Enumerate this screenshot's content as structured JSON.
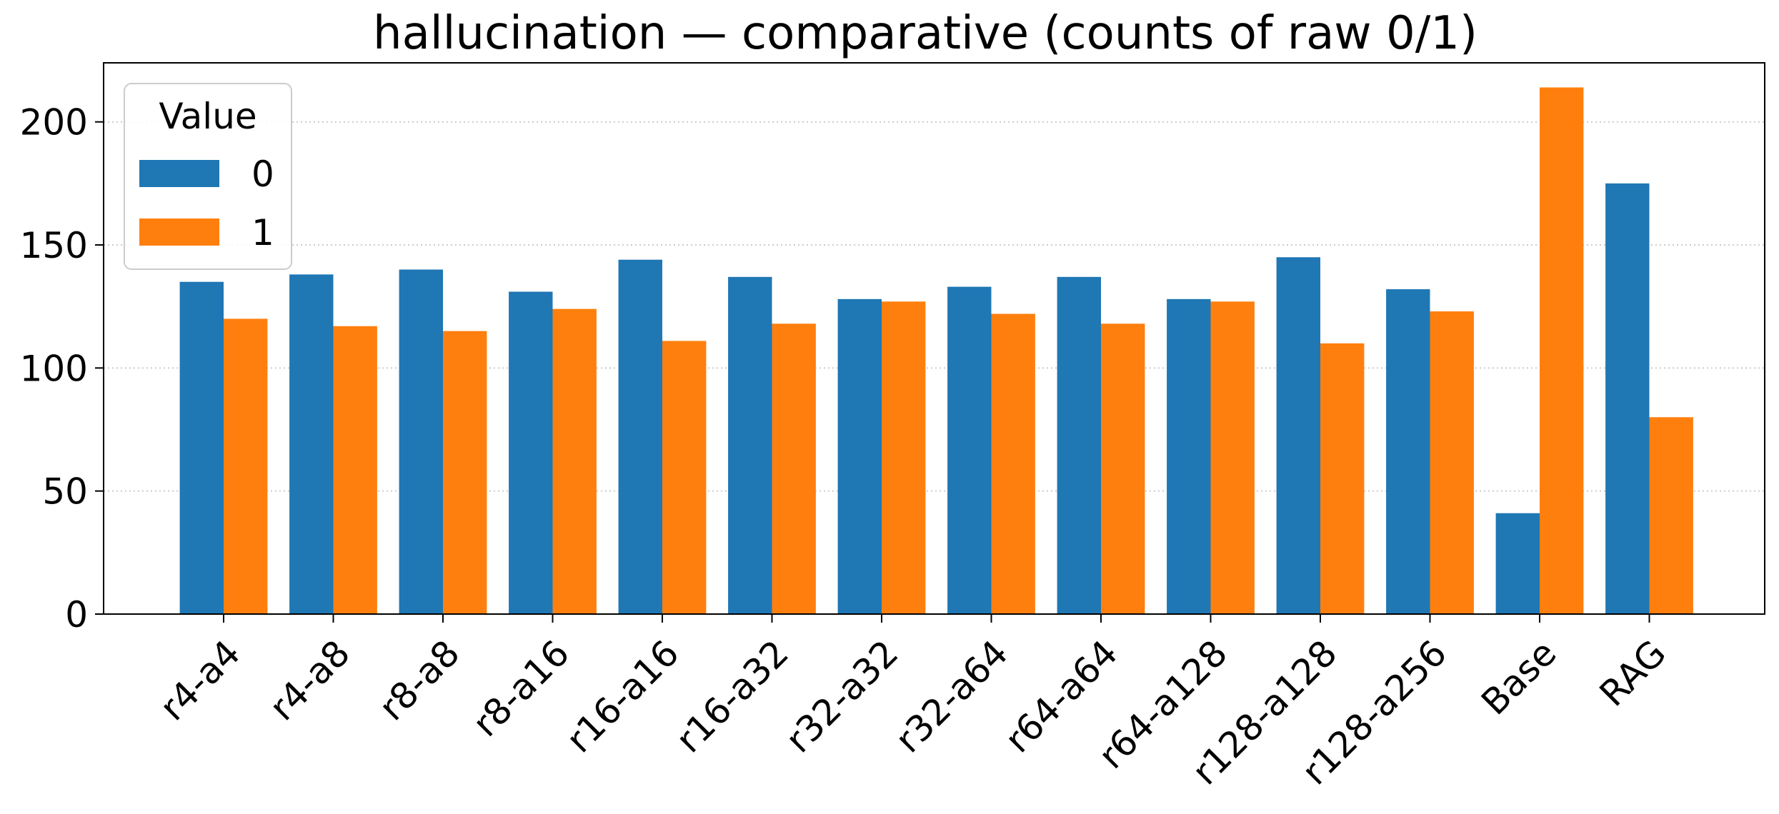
{
  "chart_data": {
    "type": "bar",
    "title": "hallucination — comparative (counts of raw 0/1)",
    "xlabel": "",
    "ylabel": "",
    "categories": [
      "r4-a4",
      "r4-a8",
      "r8-a8",
      "r8-a16",
      "r16-a16",
      "r16-a32",
      "r32-a32",
      "r32-a64",
      "r64-a64",
      "r64-a128",
      "r128-a128",
      "r128-a256",
      "Base",
      "RAG"
    ],
    "series": [
      {
        "name": "0",
        "color": "#1f77b4",
        "values": [
          135,
          138,
          140,
          131,
          144,
          137,
          128,
          133,
          137,
          128,
          145,
          132,
          41,
          175
        ]
      },
      {
        "name": "1",
        "color": "#ff7f0e",
        "values": [
          120,
          117,
          115,
          124,
          111,
          118,
          127,
          122,
          118,
          127,
          110,
          123,
          214,
          80
        ]
      }
    ],
    "ylim": [
      0,
      224
    ],
    "yticks": [
      0,
      50,
      100,
      150,
      200
    ],
    "grid": "y-dotted",
    "legend": {
      "title": "Value",
      "placement": "upper-left"
    }
  }
}
